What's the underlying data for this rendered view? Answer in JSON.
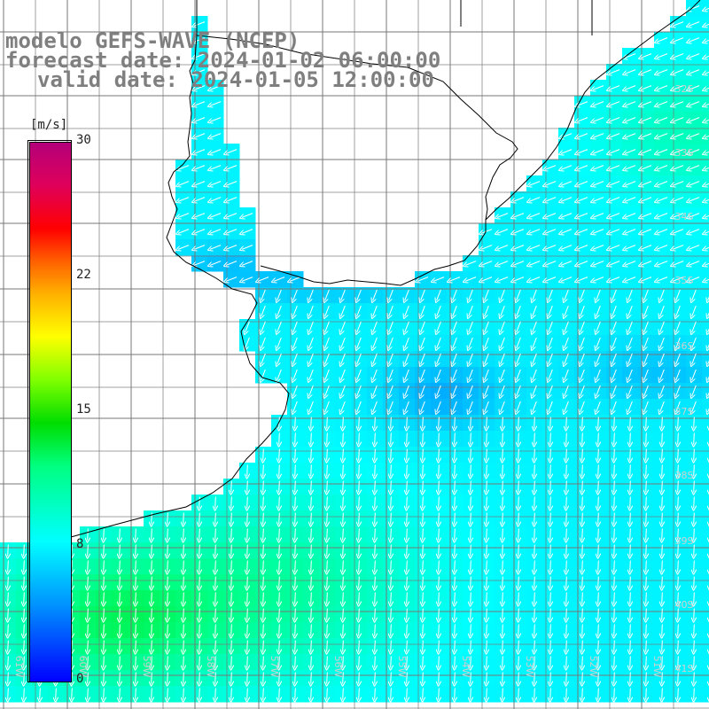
{
  "titles": {
    "line1": "modelo GEFS-WAVE (NCEP)",
    "line2": "forecast date: 2024-01-02 06:00:00",
    "line3": "valid date: 2024-01-05 12:00:00"
  },
  "colorbar": {
    "unit": "[m/s]",
    "ticks": [
      "30",
      "22",
      "15",
      "8",
      "0"
    ],
    "colors": [
      "#0000ff",
      "#0090ff",
      "#00ffff",
      "#00ff80",
      "#00dd00",
      "#80ff00",
      "#ffff00",
      "#ffb000",
      "#ff6000",
      "#ff0000",
      "#b4007a"
    ]
  },
  "map": {
    "lat_labels": [
      "32S",
      "33S",
      "34S",
      "35S",
      "36S",
      "37S",
      "38S",
      "39S",
      "40S",
      "41S"
    ],
    "lon_labels": [
      "61W",
      "60W",
      "59W",
      "58W",
      "57W",
      "56W",
      "55W",
      "54W",
      "53W",
      "52W",
      "51W"
    ],
    "lat_range": [
      -41.5,
      -31.5
    ],
    "lon_range": [
      -61.4,
      -50.6
    ],
    "wind_field": "southwesterly arrows over ocean; higher speeds (green, ~10-12 m/s) near the southern and northern parts, lower speeds (blue, ~5-6 m/s) around 36-37S 55W"
  }
}
